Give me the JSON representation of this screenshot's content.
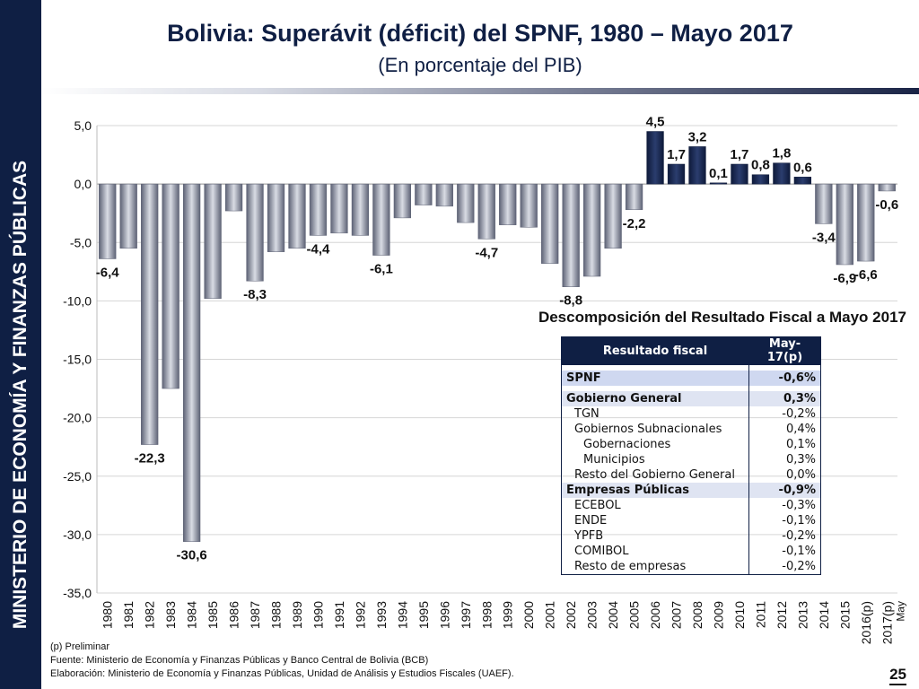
{
  "sidebar": {
    "label": "MINISTERIO DE ECONOMÍA Y FINANZAS PÚBLICAS"
  },
  "header": {
    "title": "Bolivia: Superávit (déficit) del SPNF, 1980 – Mayo 2017",
    "subtitle": "(En porcentaje del PIB)"
  },
  "chart_data": {
    "type": "bar",
    "title": "Bolivia: Superávit (déficit) del SPNF, 1980 – Mayo 2017",
    "subtitle": "(En porcentaje del PIB)",
    "categories": [
      "1980",
      "1981",
      "1982",
      "1983",
      "1984",
      "1985",
      "1986",
      "1987",
      "1988",
      "1989",
      "1990",
      "1991",
      "1992",
      "1993",
      "1994",
      "1995",
      "1996",
      "1997",
      "1998",
      "1999",
      "2000",
      "2001",
      "2002",
      "2003",
      "2004",
      "2005",
      "2006",
      "2007",
      "2008",
      "2009",
      "2010",
      "2011",
      "2012",
      "2013",
      "2014",
      "2015",
      "2016(p)",
      "2017(p)"
    ],
    "category_sublabels": {
      "2017(p)": "May"
    },
    "values": [
      -6.4,
      -5.5,
      -22.3,
      -17.5,
      -30.6,
      -9.8,
      -2.3,
      -8.3,
      -5.8,
      -5.5,
      -4.4,
      -4.2,
      -4.4,
      -6.1,
      -2.9,
      -1.8,
      -1.9,
      -3.3,
      -4.7,
      -3.5,
      -3.7,
      -6.8,
      -8.8,
      -7.9,
      -5.5,
      -2.2,
      4.5,
      1.7,
      3.2,
      0.1,
      1.7,
      0.8,
      1.8,
      0.6,
      -3.4,
      -6.9,
      -6.6,
      -0.6
    ],
    "data_labels": {
      "1980": "-6,4",
      "1982": "-22,3",
      "1984": "-30,6",
      "1987": "-8,3",
      "1990": "-4,4",
      "1993": "-6,1",
      "1998": "-4,7",
      "2002": "-8,8",
      "2005": "-2,2",
      "2006": "4,5",
      "2007": "1,7",
      "2008": "3,2",
      "2009": "0,1",
      "2010": "1,7",
      "2011": "0,8",
      "2012": "1,8",
      "2013": "0,6",
      "2014": "-3,4",
      "2015": "-6,9",
      "2016(p)": "-6,6",
      "2017(p)": "-0,6"
    },
    "yticks": [
      "5,0",
      "0,0",
      "-5,0",
      "-10,0",
      "-15,0",
      "-20,0",
      "-25,0",
      "-30,0",
      "-35,0"
    ],
    "ylim": [
      -35,
      5
    ],
    "xlabel": "",
    "ylabel": "",
    "grid": true,
    "colors": {
      "negative": "#8a8f9e",
      "positive": "#1a2a52"
    }
  },
  "table": {
    "caption": "Descomposición del Resultado Fiscal a Mayo 2017",
    "headers": [
      "Resultado fiscal",
      "May-17(p)"
    ],
    "rows": [
      {
        "label": "SPNF",
        "value": "-0,6%"
      },
      {
        "label": "Gobierno General",
        "value": "0,3%"
      },
      {
        "label": "TGN",
        "value": "-0,2%"
      },
      {
        "label": "Gobiernos Subnacionales",
        "value": "0,4%"
      },
      {
        "label": "Gobernaciones",
        "value": "0,1%"
      },
      {
        "label": "Municipios",
        "value": "0,3%"
      },
      {
        "label": "Resto del Gobierno General",
        "value": "0,0%"
      },
      {
        "label": "Empresas Públicas",
        "value": "-0,9%"
      },
      {
        "label": "ECEBOL",
        "value": "-0,3%"
      },
      {
        "label": "ENDE",
        "value": "-0,1%"
      },
      {
        "label": "YPFB",
        "value": "-0,2%"
      },
      {
        "label": "COMIBOL",
        "value": "-0,1%"
      },
      {
        "label": "Resto de empresas",
        "value": "-0,2%"
      }
    ]
  },
  "notes": {
    "preliminar": "(p) Preliminar",
    "fuente": "Fuente: Ministerio de Economía y Finanzas Públicas y Banco Central de Bolivia (BCB)",
    "elaboracion": "Elaboración: Ministerio de Economía y Finanzas Públicas, Unidad de Análisis y Estudios Fiscales (UAEF)."
  },
  "page_number": "25"
}
